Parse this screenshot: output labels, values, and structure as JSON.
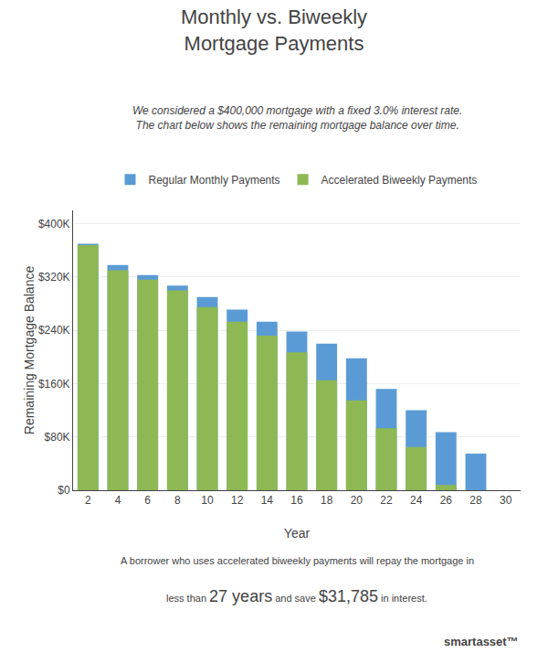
{
  "chart_data": {
    "type": "bar",
    "title": "Monthly vs. Biweekly\nMortgage Payments",
    "subtitle": "We considered a $400,000 mortgage with a fixed 3.0% interest rate.\nThe chart below shows the remaining mortgage balance over time.",
    "categories": [
      "2",
      "4",
      "6",
      "8",
      "10",
      "12",
      "14",
      "16",
      "18",
      "20",
      "22",
      "24",
      "26",
      "28",
      "30"
    ],
    "series": [
      {
        "name": "Regular Monthly Payments",
        "color": "#5b9bd5",
        "values": [
          370000,
          338000,
          323000,
          307000,
          290000,
          271000,
          253000,
          238000,
          220000,
          198000,
          152000,
          120000,
          87000,
          55000,
          0
        ]
      },
      {
        "name": "Accelerated Biweekly Payments",
        "color": "#8db854",
        "values": [
          368000,
          330000,
          316000,
          300000,
          275000,
          253000,
          232000,
          207000,
          165000,
          135000,
          93000,
          65000,
          8000,
          0,
          0
        ]
      }
    ],
    "xlabel": "Year",
    "ylabel": "Remaining Mortgage Balance",
    "ylim": [
      0,
      420000
    ],
    "yticks": [
      {
        "value": 0,
        "label": "$0"
      },
      {
        "value": 80000,
        "label": "$80K"
      },
      {
        "value": 160000,
        "label": "$160K"
      },
      {
        "value": 240000,
        "label": "$240K"
      },
      {
        "value": 320000,
        "label": "$320K"
      },
      {
        "value": 400000,
        "label": "$400K"
      }
    ],
    "grid": true,
    "legend": "top",
    "annotations": [
      "A borrower who uses accelerated biweekly payments will repay the mortgage in",
      [
        "less than ",
        "27 years",
        " and save ",
        "$31,785",
        " in interest."
      ],
      "smartasset™"
    ]
  }
}
